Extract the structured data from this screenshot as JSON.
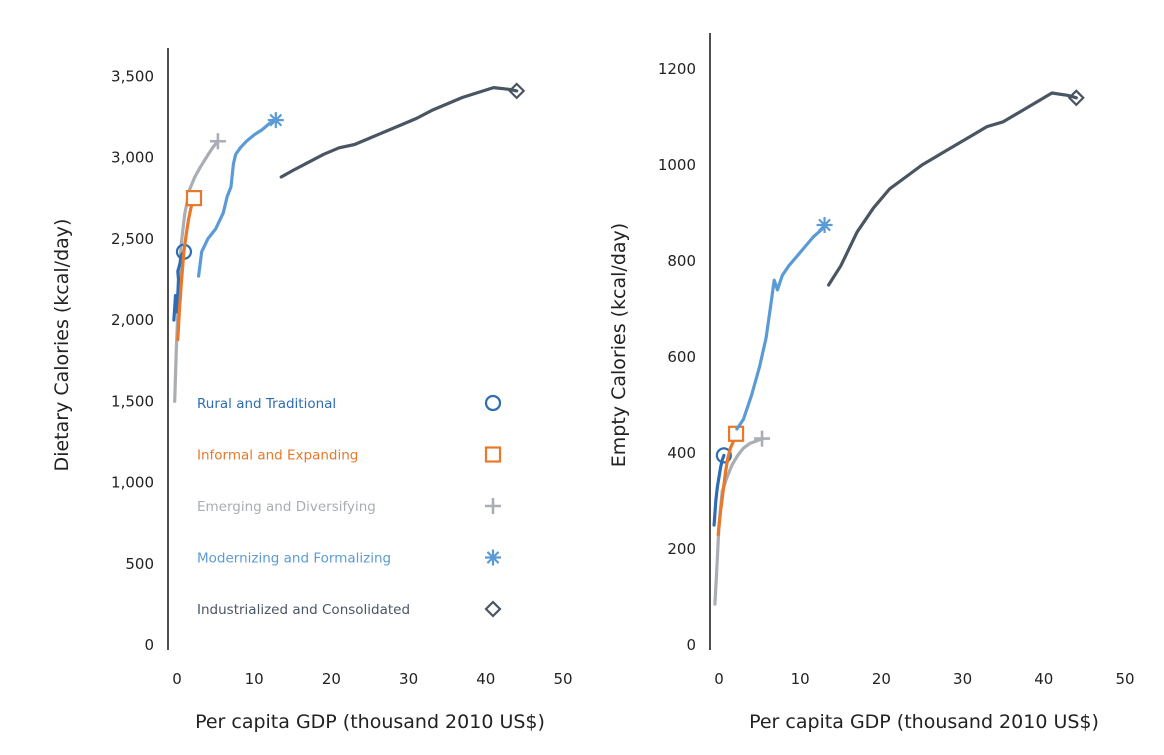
{
  "colors": {
    "rural": "#2e6db4",
    "informal": "#e8782a",
    "emerging": "#a9adb4",
    "modernizing": "#5b9bd5",
    "industrialized": "#4a5564",
    "axis": "#222222",
    "text": "#222222"
  },
  "chart_data": [
    {
      "type": "line",
      "panel": "left",
      "xlabel": "Per capita GDP (thousand 2010 US$)",
      "ylabel": "Dietary Calories (kcal/day)",
      "xlim": [
        0,
        50
      ],
      "ylim": [
        0,
        3600
      ],
      "x_ticks": [
        0,
        10,
        20,
        30,
        40,
        50
      ],
      "x_tick_labels": [
        "0",
        "10",
        "20",
        "30",
        "40",
        "50"
      ],
      "y_ticks": [
        0,
        500,
        1000,
        1500,
        2000,
        2500,
        3000,
        3500
      ],
      "y_tick_labels": [
        "0",
        "500",
        "1,000",
        "1,500",
        "2,000",
        "2,500",
        "3,000",
        "3,500"
      ],
      "series": [
        {
          "name": "Emerging and Diversifying",
          "key": "emerging",
          "marker": "plus",
          "x": [
            -0.3,
            -0.1,
            0.2,
            0.5,
            1.0,
            1.6,
            2.3,
            3.0,
            3.8,
            4.6,
            5.3
          ],
          "y": [
            1500,
            1800,
            2150,
            2450,
            2650,
            2800,
            2880,
            2940,
            3000,
            3060,
            3100
          ]
        },
        {
          "name": "Rural and Traditional",
          "key": "rural",
          "marker": "circle",
          "x": [
            -0.4,
            -0.2,
            0.0,
            0.2,
            0.1,
            0.4,
            0.6,
            0.9
          ],
          "y": [
            2000,
            2150,
            2050,
            2250,
            2300,
            2350,
            2400,
            2420
          ]
        },
        {
          "name": "Informal and Expanding",
          "key": "informal",
          "marker": "square",
          "x": [
            0.1,
            0.3,
            0.6,
            0.9,
            1.2,
            1.5,
            1.8,
            2.2
          ],
          "y": [
            1880,
            2050,
            2250,
            2420,
            2530,
            2620,
            2690,
            2750
          ]
        },
        {
          "name": "Modernizing and Formalizing",
          "key": "modernizing",
          "marker": "asterisk",
          "x": [
            2.8,
            3.2,
            4.0,
            5.0,
            6.0,
            6.5,
            7.0,
            7.3,
            7.6,
            8.2,
            9.0,
            10.0,
            11.0,
            12.0,
            12.8
          ],
          "y": [
            2270,
            2420,
            2500,
            2560,
            2660,
            2760,
            2820,
            2960,
            3020,
            3060,
            3100,
            3140,
            3170,
            3210,
            3230
          ]
        },
        {
          "name": "Industrialized and Consolidated",
          "key": "industrialized",
          "marker": "diamond",
          "x": [
            13.5,
            15,
            17,
            19,
            21,
            23,
            25,
            27,
            29,
            31,
            33,
            35,
            37,
            39,
            41,
            43,
            44
          ],
          "y": [
            2880,
            2920,
            2970,
            3020,
            3060,
            3080,
            3120,
            3160,
            3200,
            3240,
            3290,
            3330,
            3370,
            3400,
            3430,
            3420,
            3410
          ]
        }
      ],
      "legend": {
        "placement": "center-left",
        "entries": [
          {
            "label": "Rural and Traditional",
            "key": "rural",
            "marker": "circle"
          },
          {
            "label": "Informal and Expanding",
            "key": "informal",
            "marker": "square"
          },
          {
            "label": "Emerging and Diversifying",
            "key": "emerging",
            "marker": "plus"
          },
          {
            "label": "Modernizing and Formalizing",
            "key": "modernizing",
            "marker": "asterisk"
          },
          {
            "label": "Industrialized and Consolidated",
            "key": "industrialized",
            "marker": "diamond"
          }
        ]
      }
    },
    {
      "type": "line",
      "panel": "right",
      "xlabel": "Per capita GDP (thousand 2010 US$)",
      "ylabel": "Empty Calories (kcal/day)",
      "xlim": [
        0,
        50
      ],
      "ylim": [
        0,
        1250
      ],
      "x_ticks": [
        0,
        10,
        20,
        30,
        40,
        50
      ],
      "x_tick_labels": [
        "0",
        "10",
        "20",
        "30",
        "40",
        "50"
      ],
      "y_ticks": [
        0,
        200,
        400,
        600,
        800,
        1000,
        1200
      ],
      "y_tick_labels": [
        "0",
        "200",
        "400",
        "600",
        "800",
        "1000",
        "1200"
      ],
      "series": [
        {
          "name": "Emerging and Diversifying",
          "key": "emerging",
          "marker": "plus",
          "x": [
            -0.5,
            -0.3,
            0.0,
            0.4,
            1.0,
            1.6,
            2.3,
            3.0,
            3.8,
            4.6,
            5.3
          ],
          "y": [
            85,
            150,
            250,
            320,
            350,
            375,
            395,
            410,
            420,
            425,
            430
          ]
        },
        {
          "name": "Rural and Traditional",
          "key": "rural",
          "marker": "circle",
          "x": [
            -0.6,
            -0.4,
            -0.2,
            0.0,
            0.2,
            0.4,
            0.6
          ],
          "y": [
            250,
            300,
            330,
            350,
            370,
            385,
            395
          ]
        },
        {
          "name": "Informal and Expanding",
          "key": "informal",
          "marker": "square",
          "x": [
            -0.1,
            0.2,
            0.5,
            0.8,
            1.1,
            1.4,
            1.8,
            2.1
          ],
          "y": [
            230,
            280,
            320,
            360,
            390,
            410,
            425,
            440
          ]
        },
        {
          "name": "Modernizing and Formalizing",
          "key": "modernizing",
          "marker": "asterisk",
          "x": [
            2.2,
            3.0,
            4.0,
            5.0,
            5.8,
            6.3,
            6.8,
            7.2,
            7.8,
            8.6,
            9.6,
            10.6,
            11.6,
            12.6,
            13.0
          ],
          "y": [
            450,
            470,
            520,
            580,
            640,
            700,
            760,
            740,
            770,
            790,
            810,
            830,
            850,
            865,
            875
          ]
        },
        {
          "name": "Industrialized and Consolidated",
          "key": "industrialized",
          "marker": "diamond",
          "x": [
            13.5,
            15,
            17,
            19,
            21,
            23,
            25,
            27,
            29,
            31,
            33,
            35,
            37,
            39,
            41,
            43,
            44
          ],
          "y": [
            750,
            790,
            860,
            910,
            950,
            975,
            1000,
            1020,
            1040,
            1060,
            1080,
            1090,
            1110,
            1130,
            1150,
            1145,
            1140
          ]
        }
      ]
    }
  ]
}
